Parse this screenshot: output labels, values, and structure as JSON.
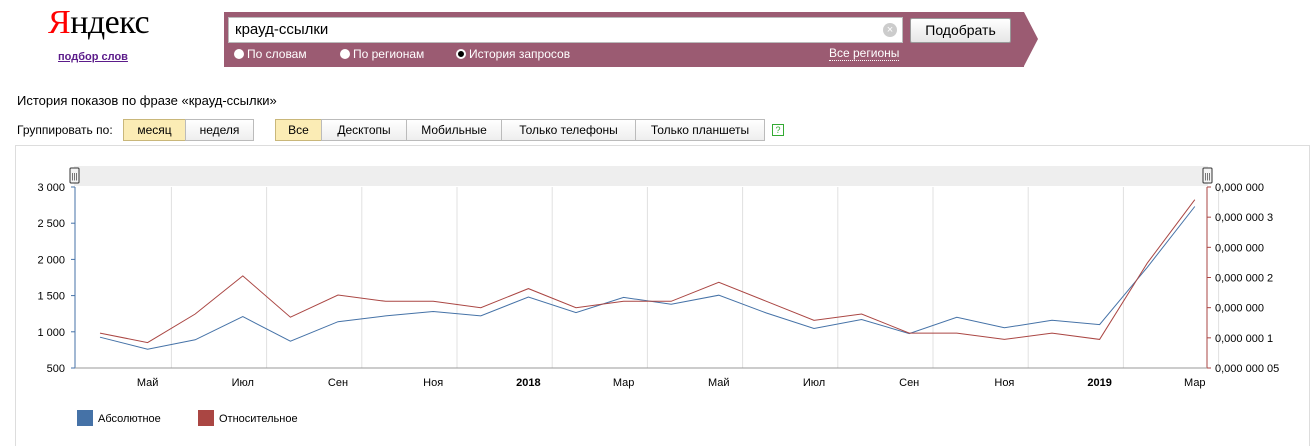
{
  "header": {
    "logo_first": "Я",
    "logo_rest": "ндекс",
    "logo_sub": "подбор слов"
  },
  "search": {
    "query": "крауд-ссылки",
    "button_label": "Подобрать",
    "clear_symbol": "×",
    "radios": [
      {
        "label": "По словам",
        "selected": false
      },
      {
        "label": "По регионам",
        "selected": false
      },
      {
        "label": "История запросов",
        "selected": true
      }
    ],
    "regions_link": "Все регионы"
  },
  "history": {
    "title": "История показов по фразе «крауд-ссылки»",
    "group_label": "Группировать по:",
    "group_buttons": [
      {
        "label": "месяц",
        "active": true
      },
      {
        "label": "неделя",
        "active": false
      }
    ],
    "device_buttons": [
      {
        "label": "Все",
        "active": true
      },
      {
        "label": "Десктопы",
        "active": false
      },
      {
        "label": "Мобильные",
        "active": false
      },
      {
        "label": "Только телефоны",
        "active": false
      },
      {
        "label": "Только планшеты",
        "active": false
      }
    ],
    "help_symbol": "?"
  },
  "chart_data": {
    "type": "line",
    "x": [
      "2017-04",
      "2017-05",
      "2017-06",
      "2017-07",
      "2017-08",
      "2017-09",
      "2017-10",
      "2017-11",
      "2017-12",
      "2018-01",
      "2018-02",
      "2018-03",
      "2018-04",
      "2018-05",
      "2018-06",
      "2018-07",
      "2018-08",
      "2018-09",
      "2018-10",
      "2018-11",
      "2018-12",
      "2019-01",
      "2019-02",
      "2019-03"
    ],
    "x_tick_labels": [
      {
        "x": "2017-05",
        "label": "Май",
        "bold": false
      },
      {
        "x": "2017-07",
        "label": "Июл",
        "bold": false
      },
      {
        "x": "2017-09",
        "label": "Сен",
        "bold": false
      },
      {
        "x": "2017-11",
        "label": "Ноя",
        "bold": false
      },
      {
        "x": "2018-01",
        "label": "2018",
        "bold": true
      },
      {
        "x": "2018-03",
        "label": "Мар",
        "bold": false
      },
      {
        "x": "2018-05",
        "label": "Май",
        "bold": false
      },
      {
        "x": "2018-07",
        "label": "Июл",
        "bold": false
      },
      {
        "x": "2018-09",
        "label": "Сен",
        "bold": false
      },
      {
        "x": "2018-11",
        "label": "Ноя",
        "bold": false
      },
      {
        "x": "2019-01",
        "label": "2019",
        "bold": true
      },
      {
        "x": "2019-03",
        "label": "Мар",
        "bold": false
      }
    ],
    "series": [
      {
        "name": "Абсолютное",
        "axis": "left",
        "color": "#4572a7",
        "values": [
          925,
          760,
          890,
          1210,
          870,
          1140,
          1220,
          1280,
          1220,
          1480,
          1265,
          1475,
          1380,
          1505,
          1260,
          1045,
          1170,
          975,
          1200,
          1055,
          1160,
          1100,
          1890,
          2730
        ]
      },
      {
        "name": "Относительное",
        "axis": "right",
        "color": "#aa4643",
        "values": [
          1.3e-06,
          1.15e-06,
          1.6e-06,
          2.2e-06,
          1.55e-06,
          1.9e-06,
          1.8e-06,
          1.8e-06,
          1.7e-06,
          2e-06,
          1.7e-06,
          1.8e-06,
          1.8e-06,
          2.1e-06,
          1.8e-06,
          1.5e-06,
          1.6e-06,
          1.3e-06,
          1.3e-06,
          1.2e-06,
          1.3e-06,
          1.2e-06,
          2.4e-06,
          3.4e-06
        ]
      }
    ],
    "y_left": {
      "min": 500,
      "max": 3000,
      "tick_step": 500,
      "tick_labels": [
        "500",
        "1 000",
        "1 500",
        "2 000",
        "2 500",
        "3 000"
      ]
    },
    "y_right": {
      "min": 7.5e-07,
      "max": 3.6e-06,
      "tick_labels": [
        "0,000 000 05",
        "0,000 000 1",
        "0,000 000",
        "0,000 000 2",
        "0,000 000",
        "0,000 000 3",
        "0,000 000"
      ]
    },
    "grid": true,
    "legend": {
      "position": "bottom-left",
      "items": [
        {
          "label": "Абсолютное",
          "color": "#4572a7"
        },
        {
          "label": "Относительное",
          "color": "#aa4643"
        }
      ]
    },
    "scrollbar_handle_symbol": "|||"
  }
}
